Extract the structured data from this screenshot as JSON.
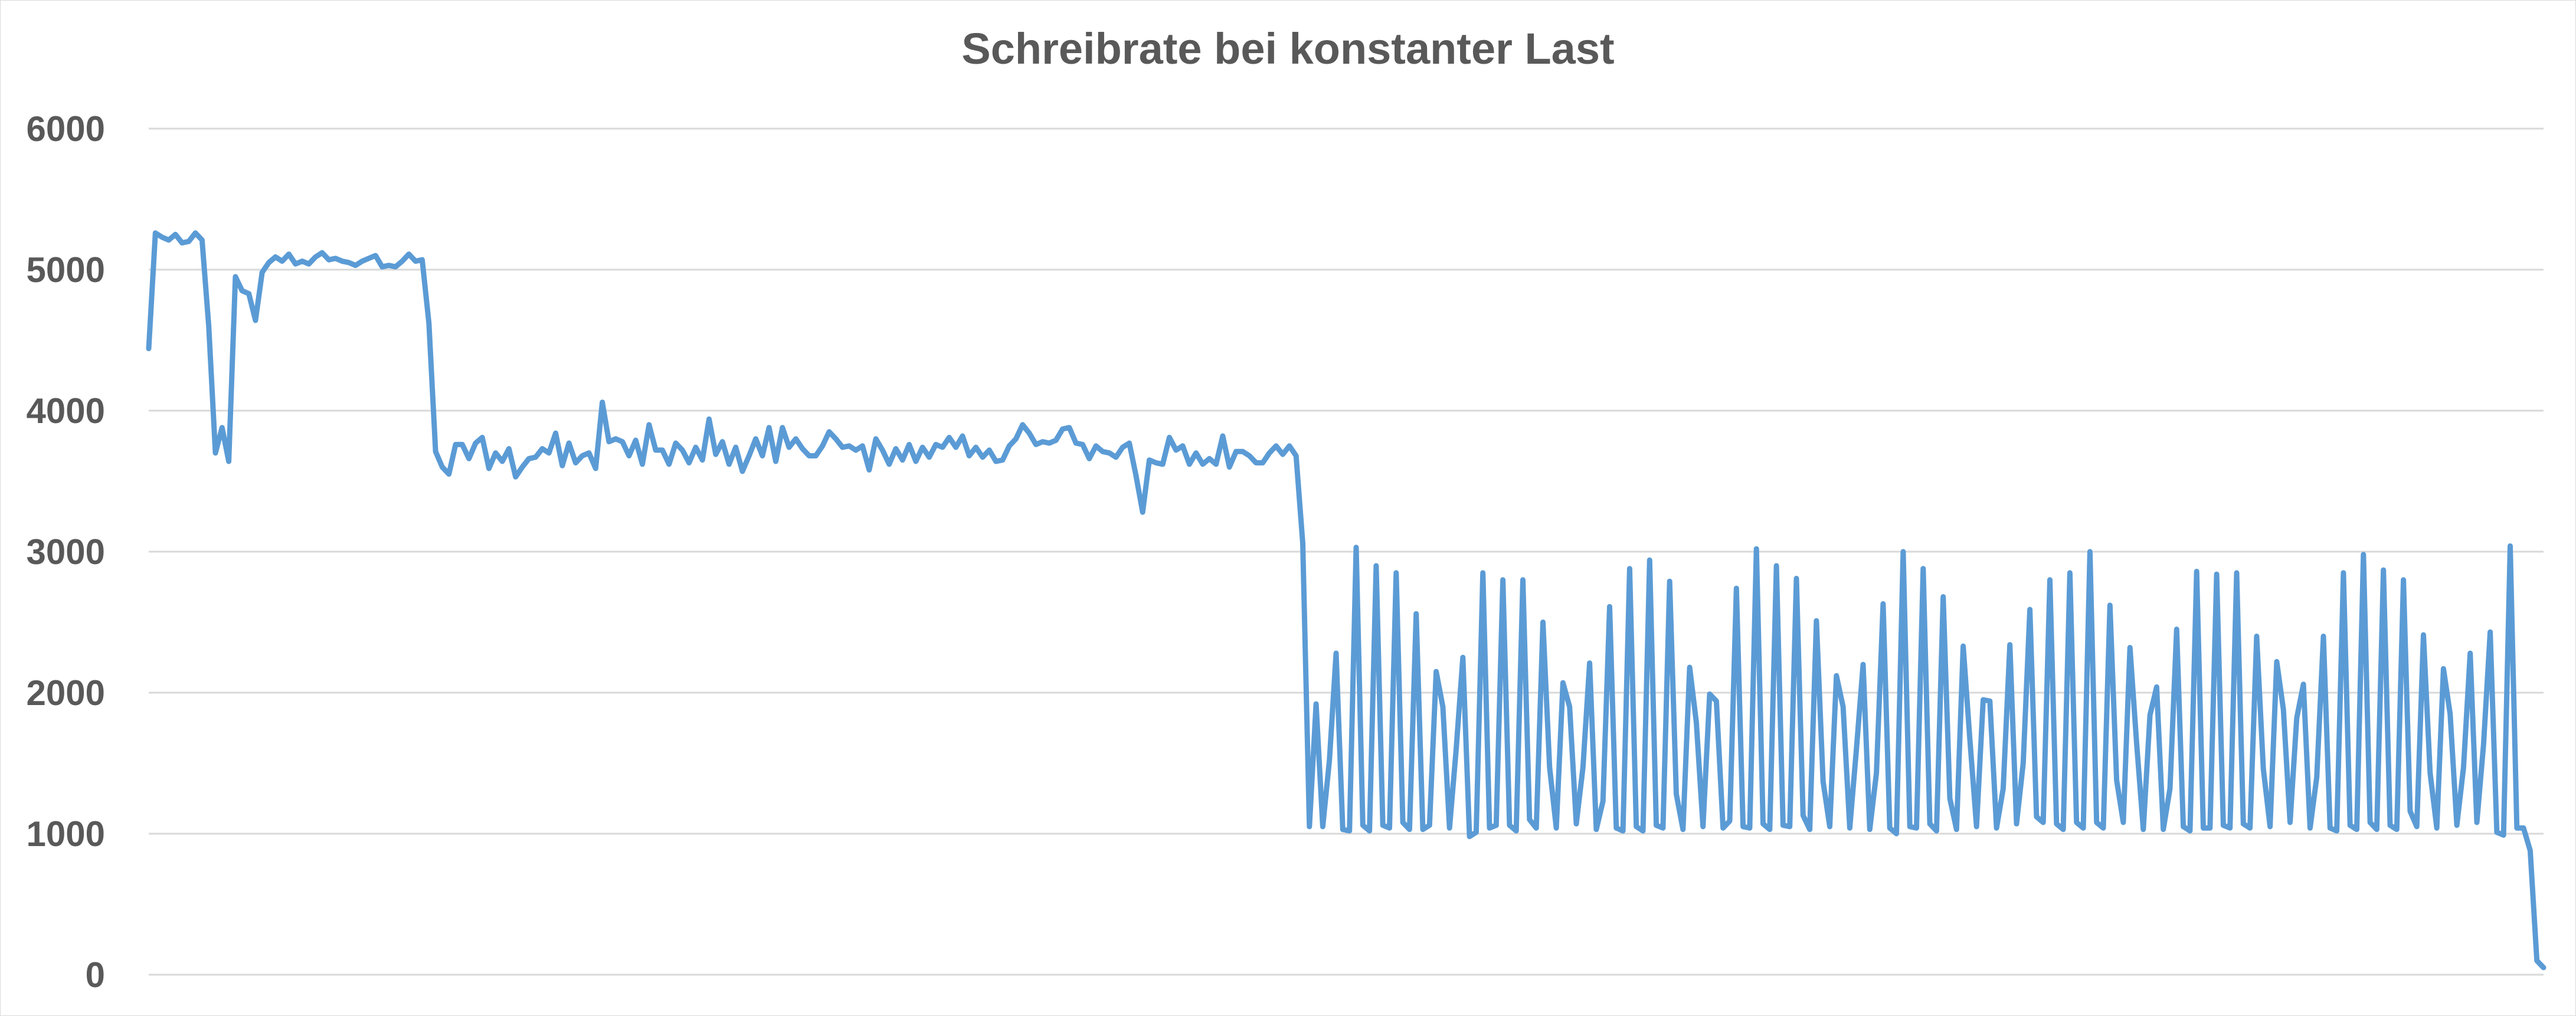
{
  "chart_data": {
    "type": "line",
    "title": "Schreibrate bei konstanter Last",
    "xlabel": "",
    "ylabel": "",
    "ylim": [
      0,
      6000
    ],
    "yticks": [
      "0",
      "1000",
      "2000",
      "3000",
      "4000",
      "5000",
      "6000"
    ],
    "grid": true,
    "legend": "none",
    "colors": {
      "line": "#5B9BD5",
      "grid": "#d9d9d9",
      "text": "#595959"
    },
    "series": [
      {
        "values": [
          4440,
          5260,
          5230,
          5210,
          5250,
          5190,
          5200,
          5260,
          5210,
          4600,
          3700,
          3880,
          3640,
          4950,
          4850,
          4830,
          4640,
          4980,
          5050,
          5090,
          5060,
          5110,
          5040,
          5060,
          5040,
          5090,
          5120,
          5070,
          5080,
          5060,
          5050,
          5030,
          5060,
          5080,
          5100,
          5020,
          5030,
          5020,
          5060,
          5110,
          5060,
          5070,
          4620,
          3710,
          3600,
          3550,
          3760,
          3760,
          3660,
          3770,
          3810,
          3590,
          3700,
          3640,
          3730,
          3530,
          3600,
          3660,
          3670,
          3730,
          3700,
          3840,
          3610,
          3770,
          3630,
          3680,
          3700,
          3590,
          4060,
          3780,
          3800,
          3780,
          3680,
          3790,
          3620,
          3900,
          3720,
          3720,
          3620,
          3770,
          3720,
          3630,
          3740,
          3650,
          3940,
          3690,
          3780,
          3620,
          3740,
          3570,
          3680,
          3800,
          3680,
          3880,
          3640,
          3880,
          3740,
          3800,
          3730,
          3680,
          3680,
          3750,
          3850,
          3800,
          3740,
          3750,
          3720,
          3750,
          3580,
          3800,
          3720,
          3620,
          3730,
          3650,
          3760,
          3640,
          3740,
          3670,
          3760,
          3740,
          3810,
          3740,
          3820,
          3680,
          3740,
          3670,
          3720,
          3640,
          3650,
          3750,
          3800,
          3900,
          3840,
          3760,
          3780,
          3770,
          3790,
          3870,
          3880,
          3770,
          3760,
          3660,
          3750,
          3710,
          3700,
          3670,
          3740,
          3770,
          3540,
          3280,
          3650,
          3630,
          3620,
          3810,
          3720,
          3750,
          3620,
          3700,
          3620,
          3660,
          3620,
          3820,
          3600,
          3710,
          3710,
          3680,
          3630,
          3630,
          3700,
          3750,
          3690,
          3750,
          3680,
          3060,
          1050,
          1920,
          1050,
          1520,
          2280,
          1030,
          1020,
          3030,
          1060,
          1020,
          2900,
          1060,
          1040,
          2850,
          1080,
          1030,
          2560,
          1030,
          1060,
          2150,
          1900,
          1040,
          1600,
          2250,
          980,
          1010,
          2850,
          1040,
          1060,
          2800,
          1060,
          1020,
          2800,
          1100,
          1040,
          2500,
          1470,
          1040,
          2070,
          1900,
          1070,
          1470,
          2210,
          1030,
          1230,
          2610,
          1040,
          1020,
          2880,
          1050,
          1020,
          2940,
          1060,
          1040,
          2790,
          1280,
          1030,
          2180,
          1790,
          1050,
          1990,
          1940,
          1040,
          1090,
          2740,
          1050,
          1040,
          3020,
          1070,
          1030,
          2900,
          1060,
          1050,
          2810,
          1130,
          1030,
          2510,
          1370,
          1050,
          2120,
          1900,
          1040,
          1600,
          2200,
          1030,
          1430,
          2630,
          1040,
          1000,
          3000,
          1050,
          1040,
          2880,
          1070,
          1020,
          2680,
          1250,
          1030,
          2330,
          1670,
          1050,
          1950,
          1940,
          1040,
          1320,
          2340,
          1070,
          1500,
          2590,
          1120,
          1080,
          2800,
          1070,
          1030,
          2850,
          1080,
          1040,
          3000,
          1080,
          1040,
          2620,
          1380,
          1080,
          2320,
          1640,
          1030,
          1840,
          2040,
          1030,
          1320,
          2450,
          1050,
          1020,
          2860,
          1040,
          1040,
          2840,
          1060,
          1040,
          2850,
          1070,
          1040,
          2400,
          1460,
          1050,
          2220,
          1880,
          1080,
          1820,
          2060,
          1040,
          1400,
          2400,
          1040,
          1020,
          2850,
          1060,
          1030,
          2980,
          1080,
          1030,
          2870,
          1060,
          1030,
          2800,
          1160,
          1050,
          2410,
          1430,
          1040,
          2170,
          1850,
          1060,
          1470,
          2280,
          1080,
          1630,
          2430,
          1010,
          990,
          3040,
          1040,
          1040,
          880,
          100,
          50
        ]
      }
    ]
  }
}
